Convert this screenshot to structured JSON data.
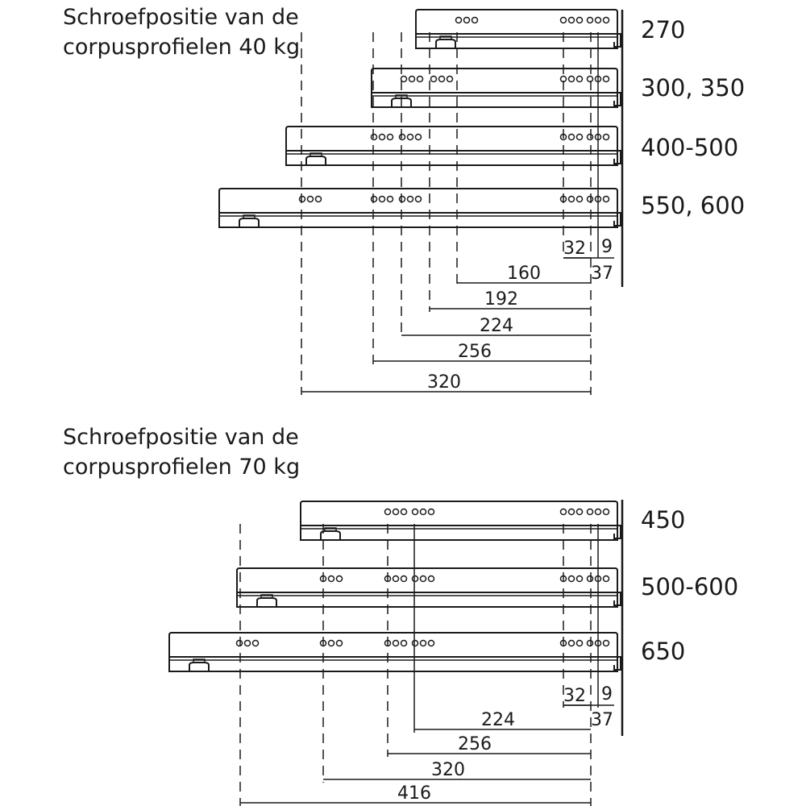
{
  "sections": [
    {
      "title_line1": "Schroefpositie van de",
      "title_line2": "corpusprofielen 40 kg",
      "profile_lengths": [
        "270",
        "300, 350",
        "400-500",
        "550, 600"
      ],
      "small_dimensions": [
        "32",
        "9",
        "37"
      ],
      "dimensions": [
        "160",
        "192",
        "224",
        "256",
        "320"
      ]
    },
    {
      "title_line1": "Schroefpositie van de",
      "title_line2": "corpusprofielen 70 kg",
      "profile_lengths": [
        "450",
        "500-600",
        "650"
      ],
      "small_dimensions": [
        "32",
        "9",
        "37"
      ],
      "dimensions": [
        "224",
        "256",
        "320",
        "416"
      ]
    }
  ]
}
